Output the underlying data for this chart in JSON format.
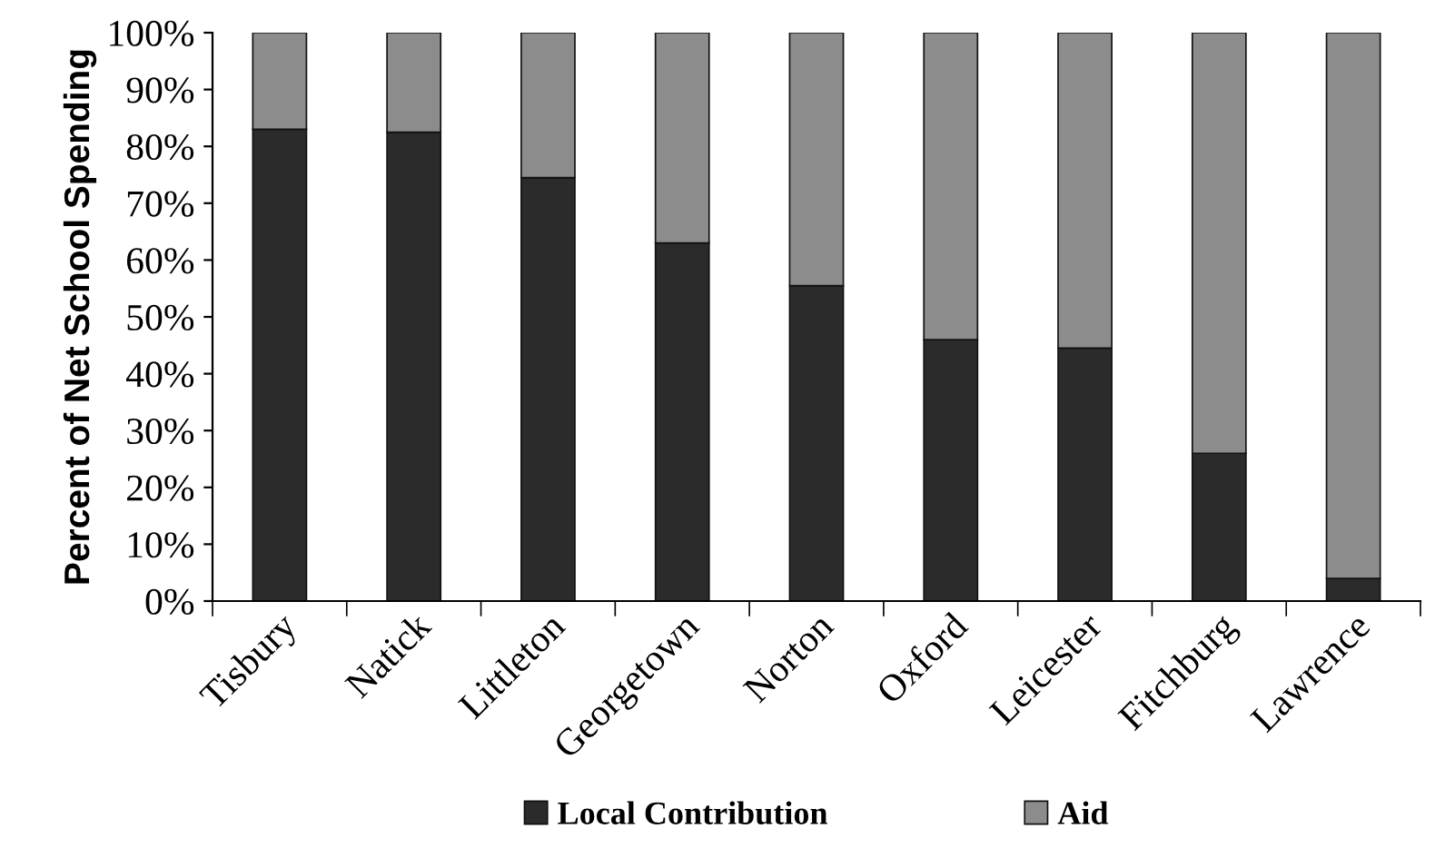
{
  "chart_data": {
    "type": "bar",
    "stacked": true,
    "ylabel": "Percent of Net School Spending",
    "categories": [
      "Tisbury",
      "Natick",
      "Littleton",
      "Georgetown",
      "Norton",
      "Oxford",
      "Leicester",
      "Fitchburg",
      "Lawrence"
    ],
    "series": [
      {
        "name": "Local Contribution",
        "color": "#2b2b2b",
        "values": [
          83,
          82.5,
          74.5,
          63,
          55.5,
          46,
          44.5,
          26,
          4
        ]
      },
      {
        "name": "Aid",
        "color": "#8c8c8c",
        "values": [
          17,
          17.5,
          25.5,
          37,
          44.5,
          54,
          55.5,
          74,
          96
        ]
      }
    ],
    "ylim": [
      0,
      100
    ],
    "yticks": [
      {
        "value": 0,
        "label": "0%"
      },
      {
        "value": 10,
        "label": "10%"
      },
      {
        "value": 20,
        "label": "20%"
      },
      {
        "value": 30,
        "label": "30%"
      },
      {
        "value": 40,
        "label": "40%"
      },
      {
        "value": 50,
        "label": "50%"
      },
      {
        "value": 60,
        "label": "60%"
      },
      {
        "value": 70,
        "label": "70%"
      },
      {
        "value": 80,
        "label": "80%"
      },
      {
        "value": 90,
        "label": "90%"
      },
      {
        "value": 100,
        "label": "100%"
      }
    ],
    "grid": false,
    "legend": "bottom"
  }
}
